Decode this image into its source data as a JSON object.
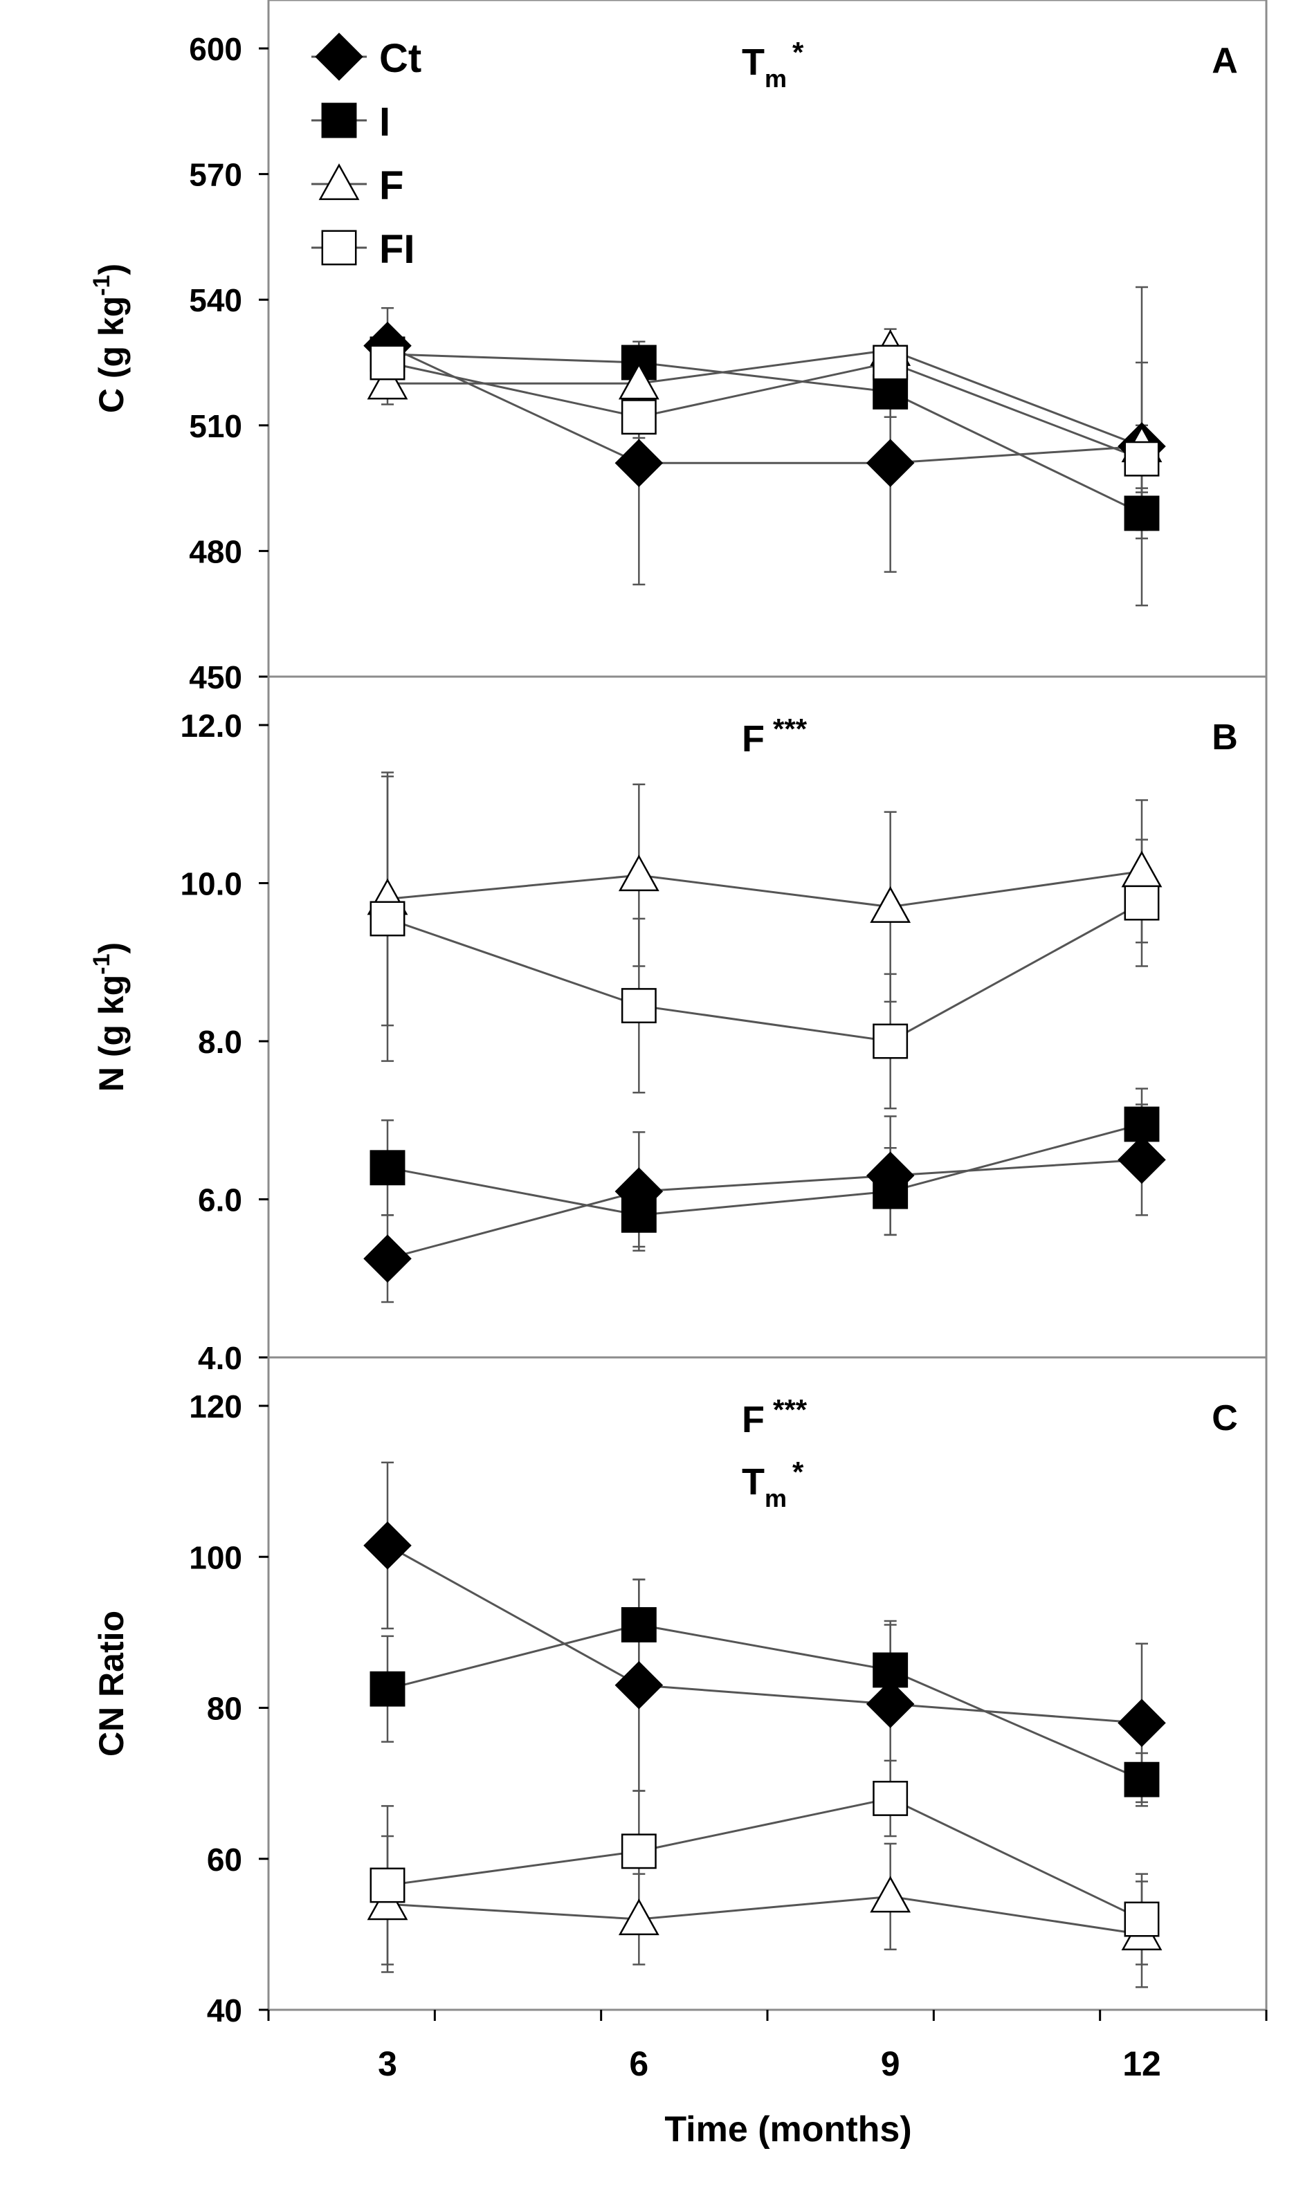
{
  "legend": [
    {
      "label": "Ct",
      "marker": "diamond",
      "fill": "#000000"
    },
    {
      "label": "I",
      "marker": "square",
      "fill": "#000000"
    },
    {
      "label": "F",
      "marker": "triangle",
      "fill": "#ffffff"
    },
    {
      "label": "FI",
      "marker": "square",
      "fill": "#ffffff"
    }
  ],
  "colors": {
    "line": "#555555",
    "frame": "#8c8c8c",
    "errorbar": "#555555",
    "filled": "#000000",
    "open": "#ffffff"
  },
  "chart_data": [
    {
      "type": "line",
      "panel_label": "A",
      "annotation": [
        {
          "base": "T",
          "sub": "m",
          "sup": "*"
        }
      ],
      "ylabel": "C (g kg",
      "ylabel_sup": "-1",
      "ylabel_close": ")",
      "ylim": [
        450,
        600
      ],
      "yticks": [
        450,
        480,
        510,
        540,
        570,
        600
      ],
      "ytick_labels": [
        "450",
        "480",
        "510",
        "540",
        "570",
        "600"
      ],
      "x": [
        3,
        6,
        9,
        12
      ],
      "series": [
        {
          "name": "Ct",
          "values": [
            529,
            501,
            501,
            505
          ],
          "err": [
            9,
            29,
            26,
            38
          ]
        },
        {
          "name": "I",
          "values": [
            527,
            525,
            518,
            489
          ],
          "err": [
            6,
            5,
            6,
            6
          ]
        },
        {
          "name": "F",
          "values": [
            520,
            520,
            528,
            505
          ],
          "err": [
            5,
            5,
            5,
            20
          ]
        },
        {
          "name": "FI",
          "values": [
            525,
            512,
            525,
            502
          ],
          "err": [
            5,
            5,
            5,
            8
          ]
        }
      ]
    },
    {
      "type": "line",
      "panel_label": "B",
      "annotation": [
        {
          "base": "F",
          "sub": "",
          "sup": "***"
        }
      ],
      "ylabel": "N (g kg",
      "ylabel_sup": "-1",
      "ylabel_close": ")",
      "ylim": [
        4.0,
        12.0
      ],
      "yticks": [
        4.0,
        6.0,
        8.0,
        10.0,
        12.0
      ],
      "ytick_labels": [
        "4.0",
        "6.0",
        "8.0",
        "10.0",
        "12.0"
      ],
      "x": [
        3,
        6,
        9,
        12
      ],
      "series": [
        {
          "name": "Ct",
          "values": [
            5.25,
            6.1,
            6.3,
            6.5
          ],
          "err": [
            0.55,
            0.75,
            0.75,
            0.7
          ]
        },
        {
          "name": "I",
          "values": [
            6.4,
            5.8,
            6.1,
            6.95
          ],
          "err": [
            0.6,
            0.4,
            0.55,
            0.45
          ]
        },
        {
          "name": "F",
          "values": [
            9.8,
            10.1,
            9.7,
            10.15
          ],
          "err": [
            1.6,
            1.15,
            1.2,
            0.9
          ]
        },
        {
          "name": "FI",
          "values": [
            9.55,
            8.45,
            8.0,
            9.75
          ],
          "err": [
            1.8,
            1.1,
            0.85,
            0.8
          ]
        }
      ]
    },
    {
      "type": "line",
      "panel_label": "C",
      "annotation": [
        {
          "base": "F",
          "sub": "",
          "sup": "***"
        },
        {
          "base": "T",
          "sub": "m",
          "sup": "*"
        }
      ],
      "ylabel": "CN Ratio",
      "ylabel_sup": "",
      "ylabel_close": "",
      "ylim": [
        40,
        120
      ],
      "yticks": [
        40,
        60,
        80,
        100,
        120
      ],
      "ytick_labels": [
        "40",
        "60",
        "80",
        "100",
        "120"
      ],
      "xlabel": "Time (months)",
      "xtick_labels": [
        "3",
        "6",
        "9",
        "12"
      ],
      "x": [
        3,
        6,
        9,
        12
      ],
      "series": [
        {
          "name": "Ct",
          "values": [
            101.5,
            83,
            80.5,
            78
          ],
          "err": [
            11,
            14,
            11,
            10.5
          ]
        },
        {
          "name": "I",
          "values": [
            82.5,
            91,
            85,
            70.5
          ],
          "err": [
            7,
            6,
            6,
            3.5
          ]
        },
        {
          "name": "F",
          "values": [
            54,
            52,
            55,
            50
          ],
          "err": [
            9,
            6,
            7,
            7
          ]
        },
        {
          "name": "FI",
          "values": [
            56.5,
            61,
            68,
            52
          ],
          "err": [
            10.5,
            8,
            5,
            6
          ]
        }
      ]
    }
  ]
}
